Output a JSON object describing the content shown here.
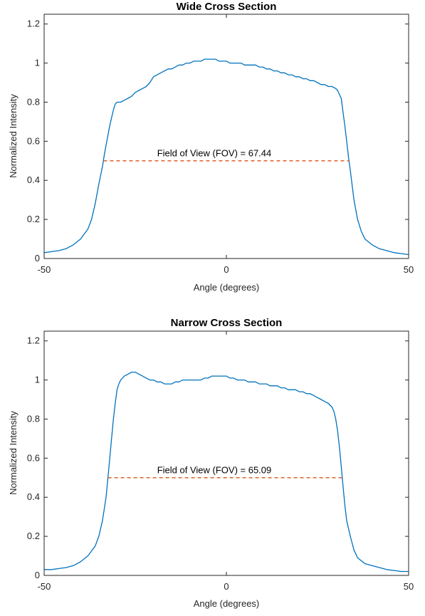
{
  "chart_data": [
    {
      "type": "line",
      "title": "Wide Cross Section",
      "xlabel": "Angle (degrees)",
      "ylabel": "Normalized Intensity",
      "xlim": [
        -50,
        50
      ],
      "ylim": [
        0,
        1.25
      ],
      "xticks": [
        -50,
        0,
        50
      ],
      "yticks": [
        0,
        0.2,
        0.4,
        0.6,
        0.8,
        1,
        1.2
      ],
      "xtick_labels": [
        "-50",
        "0",
        "50"
      ],
      "ytick_labels": [
        "0",
        "0.2",
        "0.4",
        "0.6",
        "0.8",
        "1",
        "1.2"
      ],
      "grid": false,
      "colors": {
        "series": "#0072BD",
        "fov_line": "#D95319"
      },
      "series": [
        {
          "x": [
            -50,
            -48,
            -46,
            -44,
            -42,
            -40,
            -38,
            -37,
            -36,
            -35,
            -34,
            -33.5,
            -33,
            -32.5,
            -32,
            -31.5,
            -31,
            -30.5,
            -30,
            -29,
            -28,
            -27,
            -26,
            -25,
            -24,
            -23,
            -22,
            -21,
            -20,
            -19,
            -18,
            -17,
            -16,
            -15,
            -14,
            -13,
            -12,
            -11,
            -10,
            -9,
            -8,
            -7,
            -6,
            -5,
            -4,
            -3,
            -2,
            -1,
            0,
            1,
            2,
            3,
            4,
            5,
            6,
            7,
            8,
            9,
            10,
            11,
            12,
            13,
            14,
            15,
            16,
            17,
            18,
            19,
            20,
            21,
            22,
            23,
            24,
            25,
            26,
            27,
            28,
            29,
            30,
            30.5,
            31,
            31.5,
            32,
            32.5,
            33,
            33.5,
            34,
            35,
            36,
            37,
            38,
            40,
            42,
            44,
            46,
            48,
            50
          ],
          "y": [
            0.03,
            0.035,
            0.04,
            0.05,
            0.07,
            0.1,
            0.15,
            0.2,
            0.28,
            0.38,
            0.47,
            0.53,
            0.58,
            0.63,
            0.68,
            0.72,
            0.76,
            0.79,
            0.8,
            0.8,
            0.81,
            0.82,
            0.83,
            0.85,
            0.86,
            0.87,
            0.88,
            0.9,
            0.93,
            0.94,
            0.95,
            0.96,
            0.97,
            0.97,
            0.98,
            0.99,
            0.99,
            1,
            1,
            1.01,
            1.01,
            1.01,
            1.02,
            1.02,
            1.02,
            1.02,
            1.01,
            1.01,
            1.01,
            1.0,
            1.0,
            1.0,
            1.0,
            0.99,
            0.99,
            0.99,
            0.99,
            0.98,
            0.98,
            0.97,
            0.97,
            0.96,
            0.96,
            0.95,
            0.95,
            0.94,
            0.94,
            0.93,
            0.93,
            0.92,
            0.92,
            0.91,
            0.91,
            0.9,
            0.89,
            0.89,
            0.88,
            0.88,
            0.87,
            0.86,
            0.84,
            0.82,
            0.75,
            0.68,
            0.6,
            0.52,
            0.45,
            0.3,
            0.2,
            0.14,
            0.1,
            0.07,
            0.05,
            0.04,
            0.03,
            0.025,
            0.02
          ]
        }
      ],
      "annotation": {
        "text": "Field of View (FOV) = 67.44",
        "x1": -33.7,
        "x2": 33.7,
        "y": 0.5,
        "label_x": -19,
        "label_y": 0.52
      }
    },
    {
      "type": "line",
      "title": "Narrow Cross Section",
      "xlabel": "Angle (degrees)",
      "ylabel": "Normalized Intensity",
      "xlim": [
        -50,
        50
      ],
      "ylim": [
        0,
        1.25
      ],
      "xticks": [
        -50,
        0,
        50
      ],
      "yticks": [
        0,
        0.2,
        0.4,
        0.6,
        0.8,
        1,
        1.2
      ],
      "xtick_labels": [
        "-50",
        "0",
        "50"
      ],
      "ytick_labels": [
        "0",
        "0.2",
        "0.4",
        "0.6",
        "0.8",
        "1",
        "1.2"
      ],
      "grid": false,
      "colors": {
        "series": "#0072BD",
        "fov_line": "#D95319"
      },
      "series": [
        {
          "x": [
            -50,
            -48,
            -46,
            -44,
            -42,
            -40,
            -38,
            -36,
            -35,
            -34,
            -33,
            -32.5,
            -32,
            -31.5,
            -31,
            -30.5,
            -30,
            -29.5,
            -29,
            -28.5,
            -28,
            -27,
            -26,
            -25,
            -24,
            -23,
            -22,
            -21,
            -20,
            -19,
            -18,
            -17,
            -16,
            -15,
            -14,
            -13,
            -12,
            -11,
            -10,
            -9,
            -8,
            -7,
            -6,
            -5,
            -4,
            -3,
            -2,
            -1,
            0,
            1,
            2,
            3,
            4,
            5,
            6,
            7,
            8,
            9,
            10,
            11,
            12,
            13,
            14,
            15,
            16,
            17,
            18,
            19,
            20,
            21,
            22,
            23,
            24,
            25,
            26,
            27,
            28,
            29,
            29.5,
            30,
            30.5,
            31,
            31.5,
            32,
            32.5,
            33,
            34,
            35,
            36,
            38,
            40,
            42,
            44,
            46,
            48,
            50
          ],
          "y": [
            0.03,
            0.03,
            0.035,
            0.04,
            0.05,
            0.07,
            0.1,
            0.15,
            0.2,
            0.28,
            0.4,
            0.5,
            0.6,
            0.7,
            0.8,
            0.88,
            0.95,
            0.98,
            1.0,
            1.01,
            1.02,
            1.03,
            1.04,
            1.04,
            1.03,
            1.02,
            1.01,
            1.0,
            1.0,
            0.99,
            0.99,
            0.98,
            0.98,
            0.98,
            0.99,
            0.99,
            1.0,
            1.0,
            1.0,
            1.0,
            1.0,
            1.0,
            1.01,
            1.01,
            1.02,
            1.02,
            1.02,
            1.02,
            1.02,
            1.01,
            1.01,
            1.0,
            1.0,
            1.0,
            0.99,
            0.99,
            0.99,
            0.98,
            0.98,
            0.98,
            0.97,
            0.97,
            0.97,
            0.96,
            0.96,
            0.95,
            0.95,
            0.95,
            0.94,
            0.94,
            0.93,
            0.93,
            0.92,
            0.91,
            0.9,
            0.89,
            0.88,
            0.86,
            0.84,
            0.8,
            0.74,
            0.66,
            0.56,
            0.46,
            0.36,
            0.28,
            0.2,
            0.13,
            0.09,
            0.06,
            0.05,
            0.04,
            0.03,
            0.025,
            0.02,
            0.02
          ]
        }
      ],
      "annotation": {
        "text": "Field of View (FOV) = 65.09",
        "x1": -32.5,
        "x2": 32.5,
        "y": 0.5,
        "label_x": -19,
        "label_y": 0.52
      }
    }
  ]
}
